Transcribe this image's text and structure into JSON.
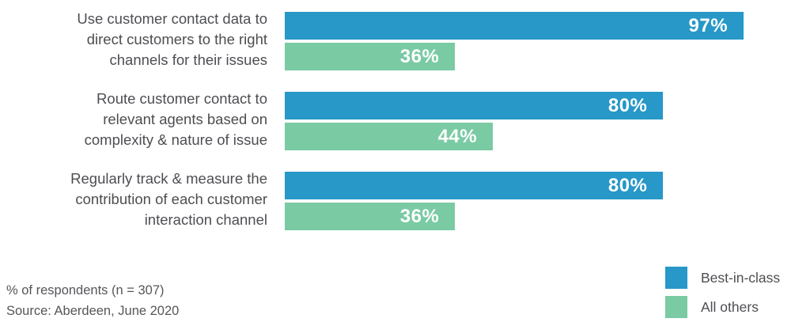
{
  "chart_data": {
    "type": "bar",
    "orientation": "horizontal",
    "categories": [
      [
        "Use customer contact data to",
        "direct customers to the right",
        "channels for their issues"
      ],
      [
        "Route customer contact to",
        "relevant agents based on",
        "complexity & nature of issue"
      ],
      [
        "Regularly track & measure the",
        "contribution of each customer",
        "interaction channel"
      ]
    ],
    "series": [
      {
        "name": "Best-in-class",
        "color": "#2798c7",
        "values": [
          97,
          80,
          80
        ]
      },
      {
        "name": "All others",
        "color": "#7acaa4",
        "values": [
          36,
          44,
          36
        ]
      }
    ],
    "value_suffix": "%",
    "xlim": [
      0,
      100
    ],
    "grid": false,
    "legend_position": "bottom-right",
    "title": "",
    "xlabel": "",
    "ylabel": ""
  },
  "colors": {
    "best_in_class": "#2798c7",
    "all_others": "#7acaa4",
    "text_gray": "#4d4e52"
  },
  "footnotes": {
    "respondents": "% of respondents (n = 307)",
    "source": "Source: Aberdeen, June 2020"
  }
}
